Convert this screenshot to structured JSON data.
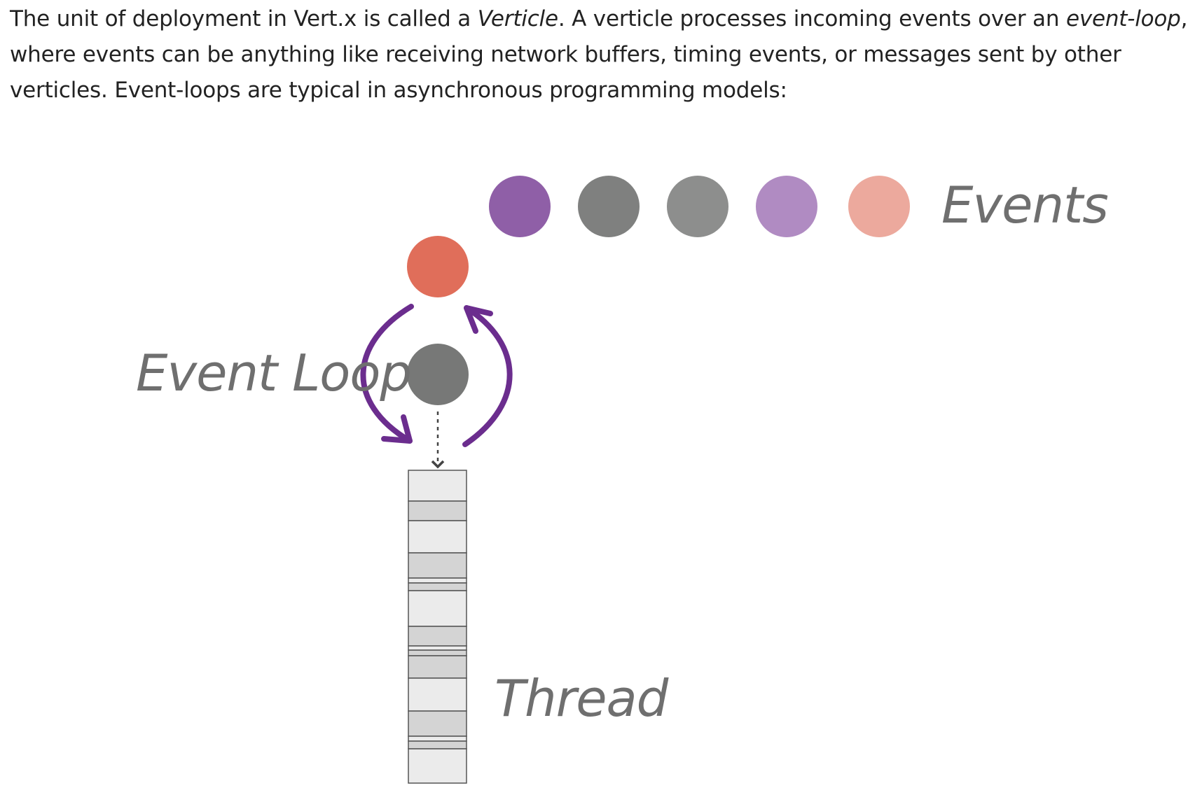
{
  "intro": {
    "part1": "The unit of deployment in Vert.x is called a ",
    "verticle": "Verticle",
    "part2": ". A verticle processes incoming events over an ",
    "event_loop": "event-loop",
    "part3": ", where events can be anything like receiving network buffers, timing events, or messages sent by other verticles. Event-loops are typical in asynchronous programming models:"
  },
  "diagram": {
    "events_label": "Events",
    "event_loop_label": "Event Loop",
    "thread_label": "Thread",
    "event_queue_colors": [
      "#8f5fa7",
      "#7f807f",
      "#8d8e8d",
      "#b08bc2",
      "#eca99d"
    ],
    "current_event_color": "#e06e5a",
    "verticle_color": "#777877",
    "arrow_color": "#6b2d8e"
  }
}
